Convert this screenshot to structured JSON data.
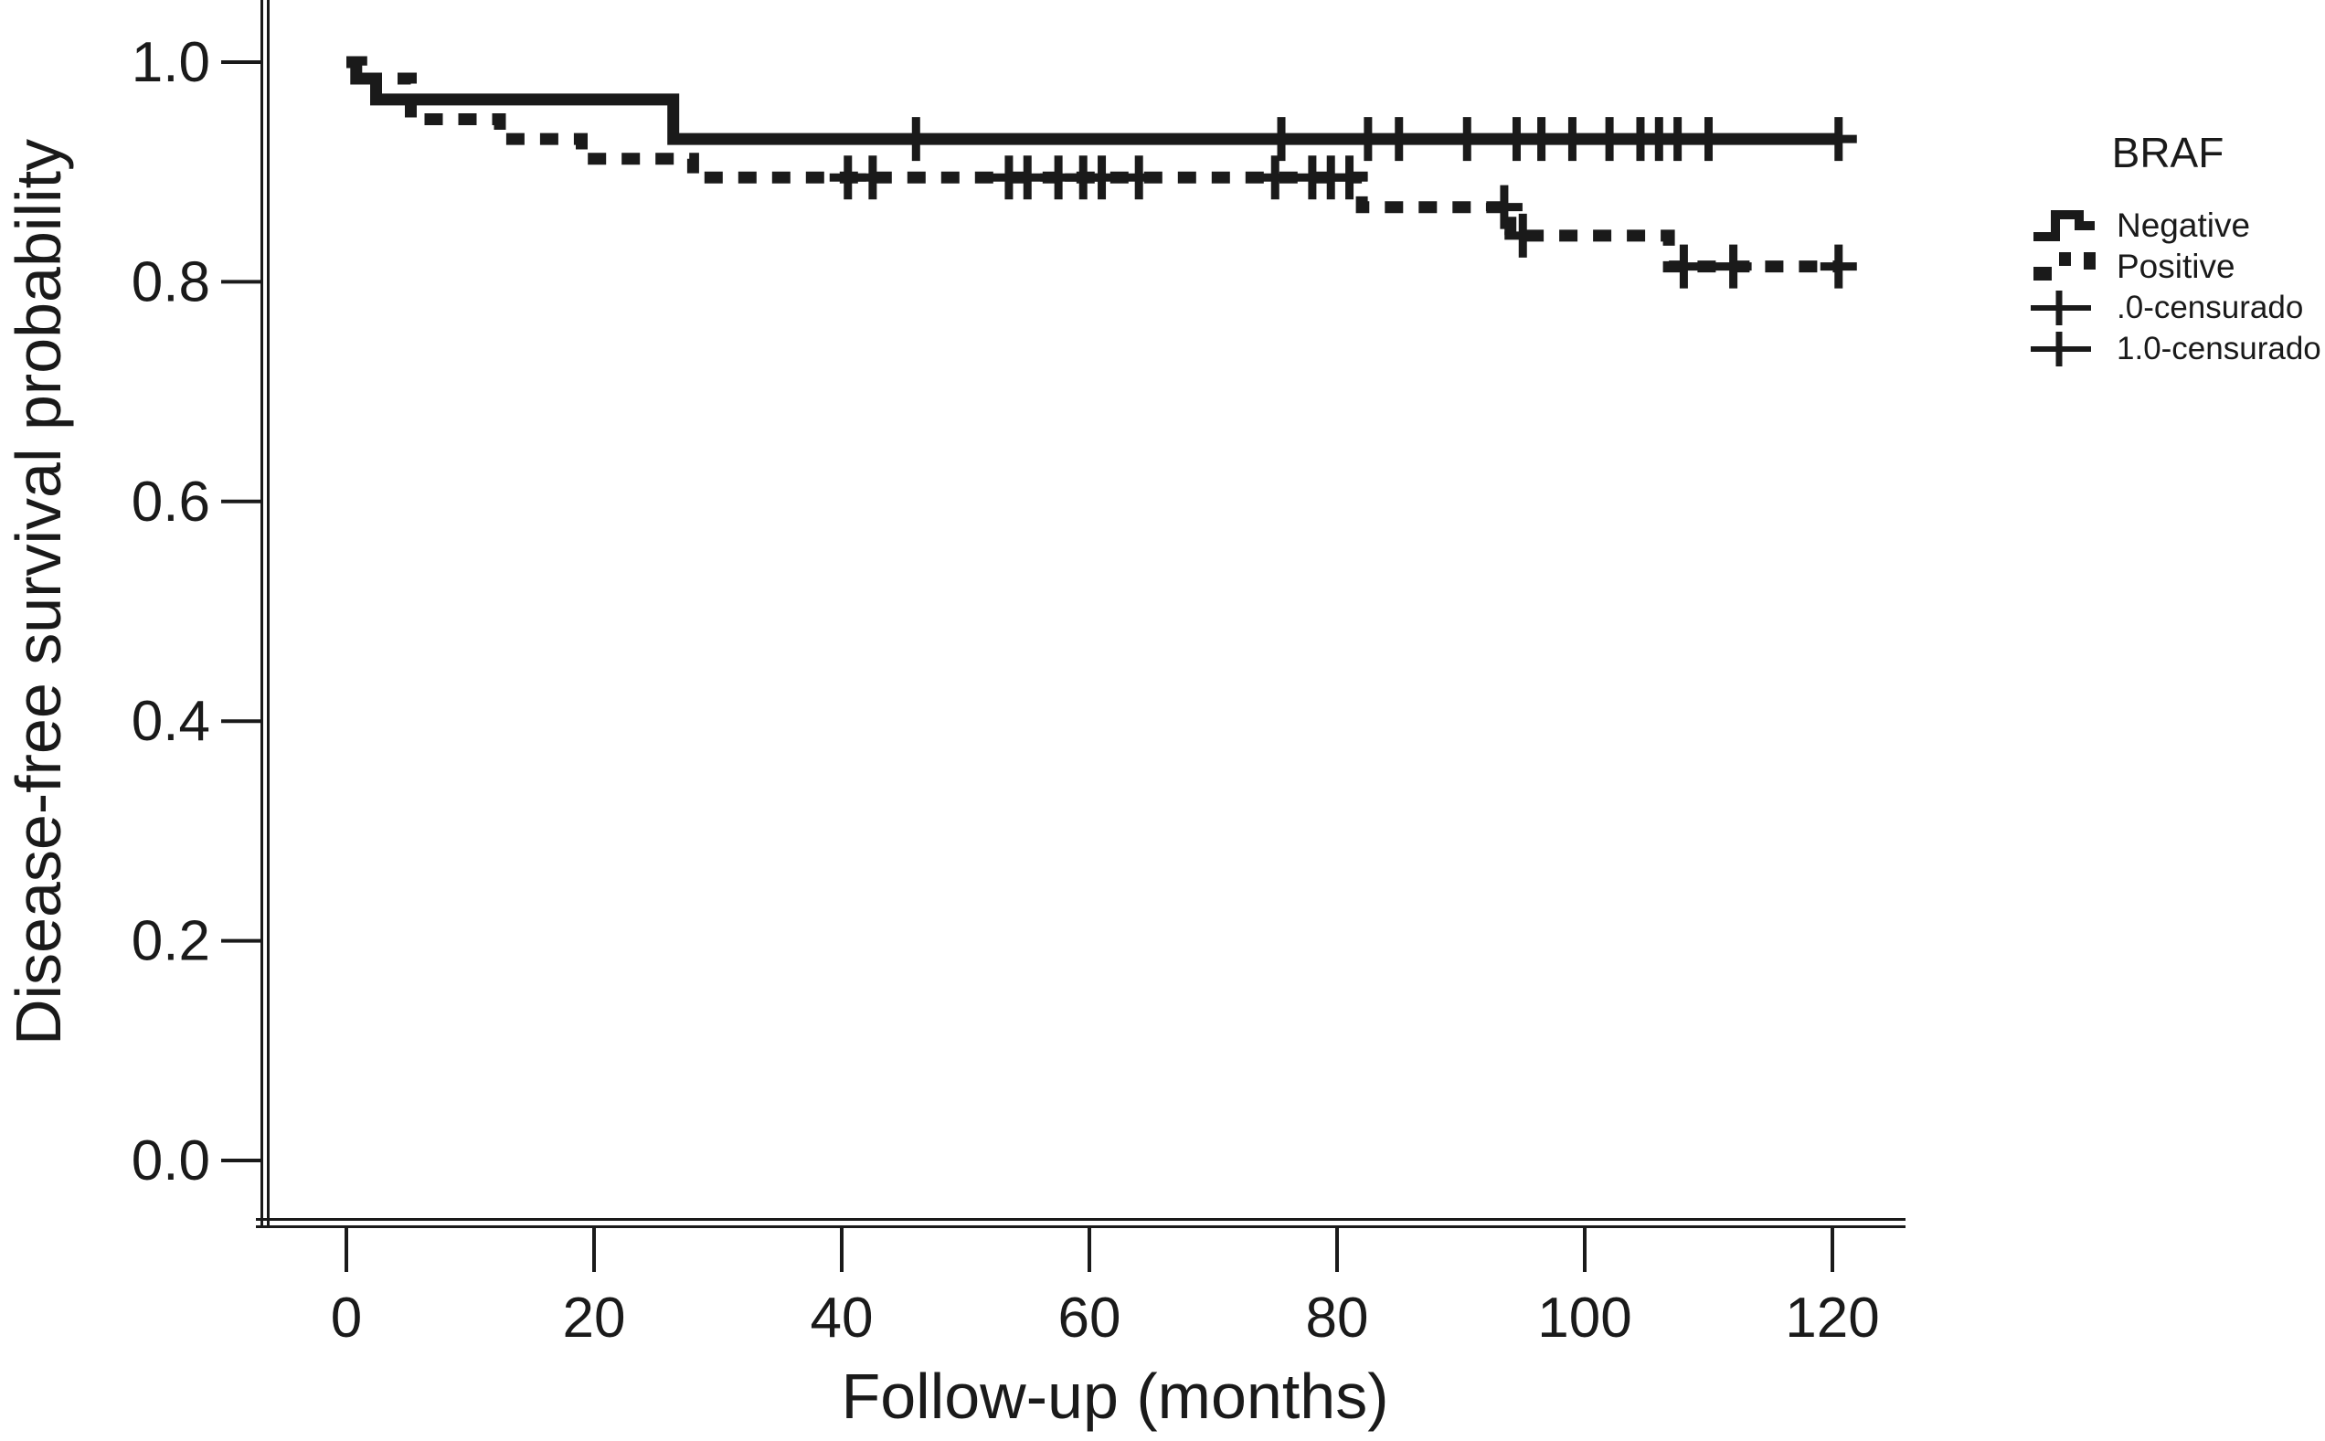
{
  "figure": {
    "background": "#ffffff",
    "line_color": "#1a1a1a",
    "text_color": "#1a1a1a"
  },
  "legend": {
    "title": "BRAF",
    "entries": [
      {
        "label": "Negative",
        "marker": "solid-step-line"
      },
      {
        "label": "Positive",
        "marker": "dashed-step-line"
      },
      {
        "label": ".0-censurado",
        "marker": "plus-on-line"
      },
      {
        "label": "1.0-censurado",
        "marker": "plus-on-line"
      }
    ]
  },
  "chart_data": {
    "type": "line",
    "subtype": "kaplan_meier_step",
    "title": "",
    "xlabel": "Follow-up (months)",
    "ylabel": "Disease-free survival probability",
    "xticks": [
      0,
      20,
      40,
      60,
      80,
      100,
      120
    ],
    "yticks": [
      1.0,
      0.8,
      0.6,
      0.4,
      0.2,
      0.0
    ],
    "ytick_labels": [
      "1.0",
      "0.8",
      "0.6",
      "0.4",
      "0.2",
      "0.0"
    ],
    "xlim": [
      -8,
      130
    ],
    "ylim": [
      -0.05,
      1.06
    ],
    "grid": false,
    "legend_position": "right-top",
    "series": [
      {
        "name": "Negative",
        "line_style": "solid",
        "steps": [
          [
            0,
            1.0
          ],
          [
            0.8,
            0.985
          ],
          [
            2.4,
            0.966
          ],
          [
            26.4,
            0.93
          ]
        ],
        "end_t": 120.5,
        "censors": [
          [
            46,
            0.93
          ],
          [
            75.5,
            0.93
          ],
          [
            82.5,
            0.93
          ],
          [
            85,
            0.93
          ],
          [
            90.5,
            0.93
          ],
          [
            94.5,
            0.93
          ],
          [
            96.5,
            0.93
          ],
          [
            99,
            0.93
          ],
          [
            102,
            0.93
          ],
          [
            104.5,
            0.93
          ],
          [
            106,
            0.93
          ],
          [
            107.5,
            0.93
          ],
          [
            110,
            0.93
          ],
          [
            120.5,
            0.93
          ]
        ]
      },
      {
        "name": "Positive",
        "line_style": "dashed",
        "steps": [
          [
            0,
            1.0
          ],
          [
            1.2,
            0.985
          ],
          [
            5.2,
            0.948
          ],
          [
            12.4,
            0.93
          ],
          [
            19,
            0.912
          ],
          [
            28,
            0.895
          ],
          [
            82,
            0.868
          ],
          [
            94,
            0.842
          ],
          [
            106.8,
            0.814
          ]
        ],
        "end_t": 120.5,
        "censors": [
          [
            40.5,
            0.895
          ],
          [
            42.5,
            0.895
          ],
          [
            53.5,
            0.895
          ],
          [
            55,
            0.895
          ],
          [
            57.5,
            0.895
          ],
          [
            59.5,
            0.895
          ],
          [
            61,
            0.895
          ],
          [
            64,
            0.895
          ],
          [
            75,
            0.895
          ],
          [
            78,
            0.895
          ],
          [
            79.5,
            0.895
          ],
          [
            81,
            0.895
          ],
          [
            93.5,
            0.868
          ],
          [
            95,
            0.842
          ],
          [
            108,
            0.814
          ],
          [
            112,
            0.814
          ],
          [
            120.5,
            0.814
          ]
        ]
      }
    ]
  }
}
